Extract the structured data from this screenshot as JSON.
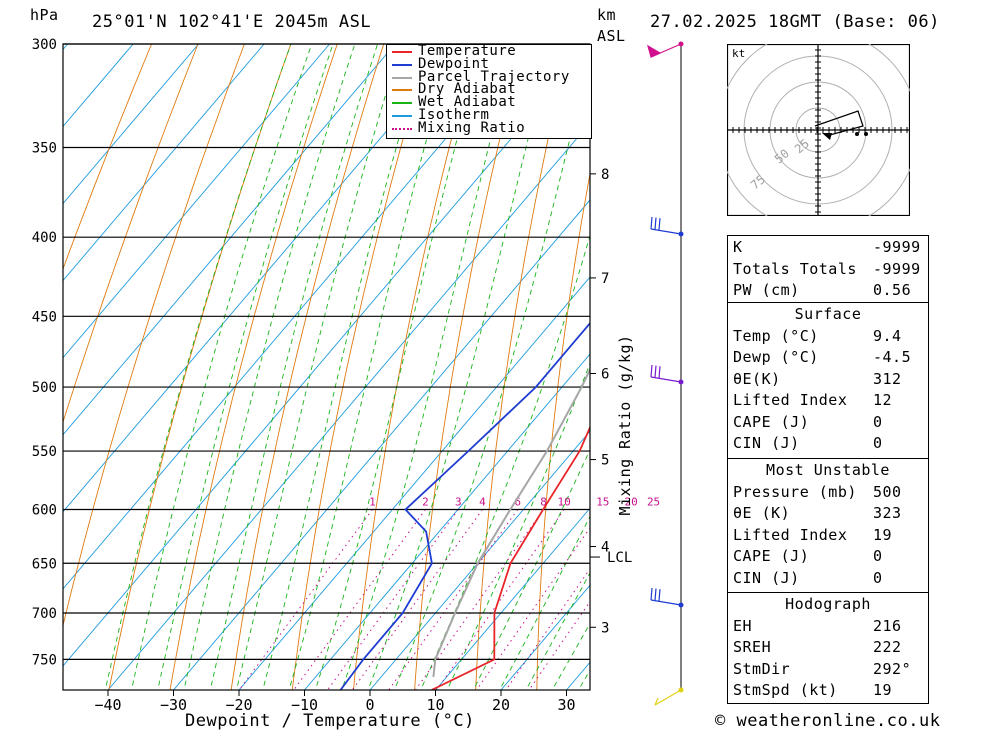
{
  "header": {
    "pressure_unit": "hPa",
    "location": "25°01'N 102°41'E 2045m ASL",
    "height_unit_1": "km",
    "height_unit_2": "ASL",
    "datetime": "27.02.2025 18GMT (Base: 06)"
  },
  "footer": {
    "credit": "© weatheronline.co.uk"
  },
  "chart_data": {
    "type": "line",
    "xlabel": "Dewpoint / Temperature (°C)",
    "ylabel": "hPa",
    "x_ticks": [
      -40,
      -30,
      -20,
      -10,
      0,
      10,
      20,
      30
    ],
    "pressure_levels": [
      300,
      350,
      400,
      450,
      500,
      550,
      600,
      650,
      700,
      750
    ],
    "height_km_ticks": [
      {
        "label": "8",
        "p": 364
      },
      {
        "label": "7",
        "p": 425
      },
      {
        "label": "6",
        "p": 490
      },
      {
        "label": "5",
        "p": 557
      },
      {
        "label": "4",
        "p": 634
      },
      {
        "label": "3",
        "p": 715
      }
    ],
    "lcl_label": "LCL",
    "lcl_p": 644,
    "mixing_ratio_label": "Mixing Ratio (g/kg)",
    "mixing_ratios": [
      "1",
      "2",
      "3",
      "4",
      "6",
      "8",
      "10",
      "15",
      "20",
      "25"
    ],
    "legend": [
      "Temperature",
      "Dewpoint",
      "Parcel Trajectory",
      "Dry Adiabat",
      "Wet Adiabat",
      "Isotherm",
      "Mixing Ratio"
    ],
    "colors": {
      "temperature": "#e8262a",
      "dewpoint": "#1e3cd2",
      "parcel": "#a6a6a6",
      "dry_adiabat": "#e07a10",
      "wet_adiabat": "#18b418",
      "isotherm": "#1e9be0",
      "mixing_ratio": "#c8108c"
    },
    "series": [
      {
        "name": "Temperature",
        "points": [
          [
            9.4,
            785
          ],
          [
            15,
            750
          ],
          [
            9,
            700
          ],
          [
            5,
            650
          ],
          [
            3,
            600
          ],
          [
            1,
            550
          ],
          [
            -3,
            500
          ],
          [
            -7,
            450
          ],
          [
            -13,
            400
          ],
          [
            -18,
            350
          ],
          [
            -24,
            300
          ]
        ]
      },
      {
        "name": "Dewpoint",
        "points": [
          [
            -4.5,
            785
          ],
          [
            -5,
            750
          ],
          [
            -5,
            700
          ],
          [
            -7,
            650
          ],
          [
            -12,
            620
          ],
          [
            -18,
            600
          ],
          [
            -16,
            550
          ],
          [
            -14,
            500
          ],
          [
            -14,
            450
          ],
          [
            -15,
            400
          ],
          [
            -13,
            350
          ],
          [
            -15,
            300
          ]
        ]
      },
      {
        "name": "Parcel Trajectory",
        "points": [
          [
            8,
            770
          ],
          [
            6,
            750
          ],
          [
            3,
            700
          ],
          [
            0,
            650
          ],
          [
            -2,
            600
          ],
          [
            -4,
            550
          ],
          [
            -7,
            500
          ],
          [
            -11,
            450
          ],
          [
            -16,
            400
          ],
          [
            -22,
            350
          ],
          [
            -30,
            300
          ]
        ]
      }
    ]
  },
  "hodograph": {
    "unit": "kt",
    "ring_labels": [
      "25",
      "50",
      "75"
    ]
  },
  "indices": {
    "top": [
      {
        "label": "K",
        "value": "-9999"
      },
      {
        "label": "Totals Totals",
        "value": "-9999"
      },
      {
        "label": "PW (cm)",
        "value": "0.56"
      }
    ],
    "surface": {
      "title": "Surface",
      "rows": [
        {
          "label": "Temp (°C)",
          "value": "9.4"
        },
        {
          "label": "Dewp (°C)",
          "value": "-4.5"
        },
        {
          "label": "θE(K)",
          "value": "312"
        },
        {
          "label": "Lifted Index",
          "value": "12"
        },
        {
          "label": "CAPE (J)",
          "value": "0"
        },
        {
          "label": "CIN (J)",
          "value": "0"
        }
      ]
    },
    "most_unstable": {
      "title": "Most Unstable",
      "rows": [
        {
          "label": "Pressure (mb)",
          "value": "500"
        },
        {
          "label": "θE (K)",
          "value": "323"
        },
        {
          "label": "Lifted Index",
          "value": "19"
        },
        {
          "label": "CAPE (J)",
          "value": "0"
        },
        {
          "label": "CIN (J)",
          "value": "0"
        }
      ]
    },
    "hodograph": {
      "title": "Hodograph",
      "rows": [
        {
          "label": "EH",
          "value": "216"
        },
        {
          "label": "SREH",
          "value": "222"
        },
        {
          "label": "StmDir",
          "value": "292°"
        },
        {
          "label": "StmSpd (kt)",
          "value": "19"
        }
      ]
    }
  }
}
